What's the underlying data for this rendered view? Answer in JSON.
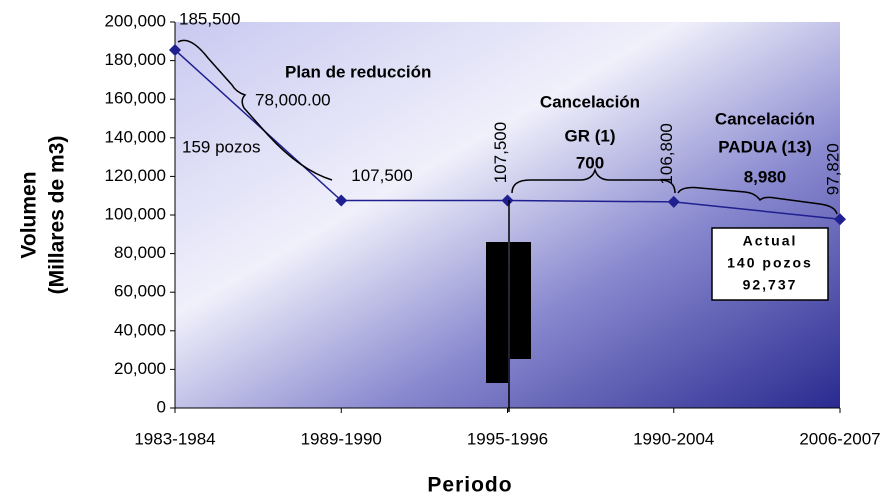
{
  "chart_data": {
    "type": "line",
    "categories": [
      "1983-1984",
      "1989-1990",
      "1995-1996",
      "1990-2004",
      "2006-2007"
    ],
    "series": [
      {
        "name": "Volumen",
        "color": "#1f1f8f",
        "values": [
          185500,
          107500,
          107500,
          106800,
          97820
        ],
        "value_labels": [
          "185,500",
          "107,500",
          "107,500",
          "106,800",
          "97,820"
        ]
      }
    ],
    "ylim": [
      0,
      200000
    ],
    "yticks": [
      0,
      {
        "value": 20000,
        "label": "20,000"
      },
      {
        "value": 40000,
        "label": "40,000"
      },
      {
        "value": 60000,
        "label": "60,000"
      },
      {
        "value": 80000,
        "label": "80,000"
      },
      {
        "value": 100000,
        "label": "100,000"
      },
      {
        "value": 120000,
        "label": "120,000"
      },
      {
        "value": 140000,
        "label": "140,000"
      },
      {
        "value": 160000,
        "label": "160,000"
      },
      {
        "value": 180000,
        "label": "180,000"
      },
      {
        "value": 200000,
        "label": "200,000"
      }
    ],
    "ylabel": [
      "Volumen",
      "(Millares de m3)"
    ],
    "xlabel": "Periodo",
    "annotations": [
      "Plan de reducción",
      "78,000.00",
      "159 pozos",
      "Cancelación",
      "GR (1)",
      "700",
      "Cancelación",
      "PADUA (13)",
      "8,980"
    ],
    "callout": [
      "Actual",
      "140 pozos",
      "92,737"
    ]
  }
}
